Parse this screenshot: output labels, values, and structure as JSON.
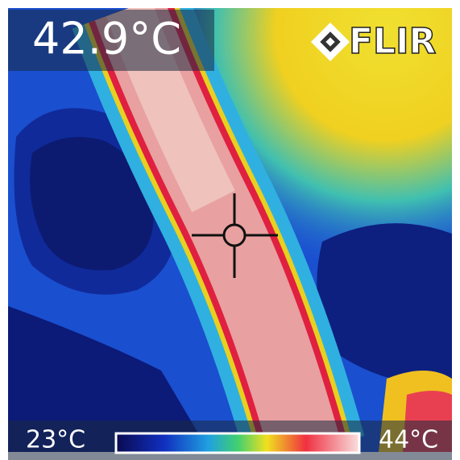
{
  "spot_temperature": "42.9°C",
  "brand": "FLIR",
  "scale": {
    "min": "23°C",
    "max": "44°C"
  }
}
